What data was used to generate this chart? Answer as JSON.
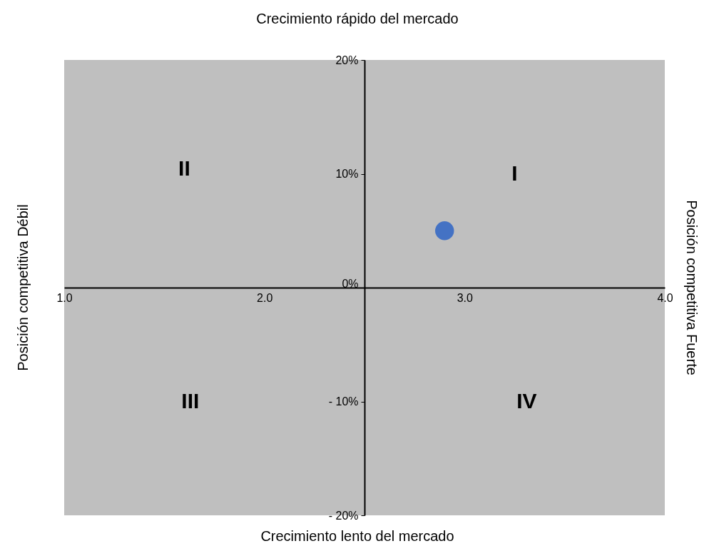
{
  "chart_data": {
    "type": "scatter",
    "title": "Crecimiento rápido del mercado",
    "xlabel": "Crecimiento lento del mercado",
    "ylabel": "Posición competitiva Débil",
    "y2label": "Posición competitiva Fuerte",
    "x": [
      2.9
    ],
    "values": [
      5
    ],
    "color": "#4472c4",
    "marker": "circle",
    "xlim": [
      1.0,
      4.0
    ],
    "xticks": [
      {
        "value": 1,
        "label": "1.0"
      },
      {
        "value": 2,
        "label": "2.0"
      },
      {
        "value": 3,
        "label": "3.0"
      },
      {
        "value": 4,
        "label": "4.0"
      }
    ],
    "ylim": [
      -20,
      20
    ],
    "yticks": [
      {
        "value": -20,
        "label": "- 20%"
      },
      {
        "value": -10,
        "label": "- 10%"
      },
      {
        "value": 0,
        "label": "0%"
      },
      {
        "value": 10,
        "label": "10%"
      },
      {
        "value": 20,
        "label": "20%"
      }
    ],
    "annotations": [
      "I",
      "II",
      "III",
      "IV"
    ],
    "grid": false
  }
}
